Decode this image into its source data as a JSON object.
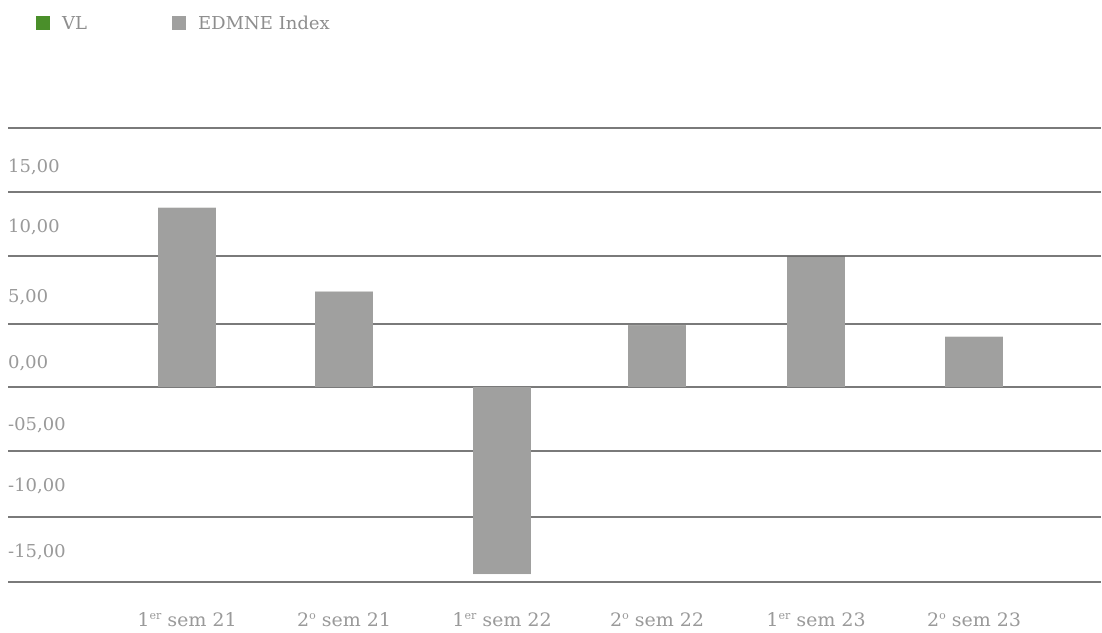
{
  "chart_data": {
    "type": "bar",
    "categories": [
      {
        "base": "1",
        "sup": "er",
        "rest": " sem 21"
      },
      {
        "base": "2",
        "sup": "o",
        "rest": " sem 21"
      },
      {
        "base": "1",
        "sup": "er",
        "rest": " sem 22"
      },
      {
        "base": "2",
        "sup": "o",
        "rest": " sem 22"
      },
      {
        "base": "1",
        "sup": "er",
        "rest": " sem 23"
      },
      {
        "base": "2",
        "sup": "o",
        "rest": " sem 23"
      }
    ],
    "series": [
      {
        "name": "VL",
        "color": "#4a8f2a",
        "values": [
          null,
          null,
          null,
          null,
          null,
          null
        ]
      },
      {
        "name": "EDMNE Index",
        "color": "#a0a09f",
        "values": [
          13.9,
          7.4,
          -14.5,
          4.8,
          10.1,
          3.9
        ]
      }
    ],
    "y_ticks": [
      {
        "value": 15,
        "label": "15,00"
      },
      {
        "value": 10,
        "label": "10,00"
      },
      {
        "value": 5,
        "label": "5,00"
      },
      {
        "value": 0,
        "label": "0,00"
      },
      {
        "value": -5,
        "label": "-05,00"
      },
      {
        "value": -10,
        "label": "-10,00"
      },
      {
        "value": -15,
        "label": "-15,00"
      }
    ],
    "ylim": [
      -15,
      20
    ],
    "grid": true,
    "legend_position": "top-left",
    "title": "",
    "xlabel": "",
    "ylabel": ""
  }
}
